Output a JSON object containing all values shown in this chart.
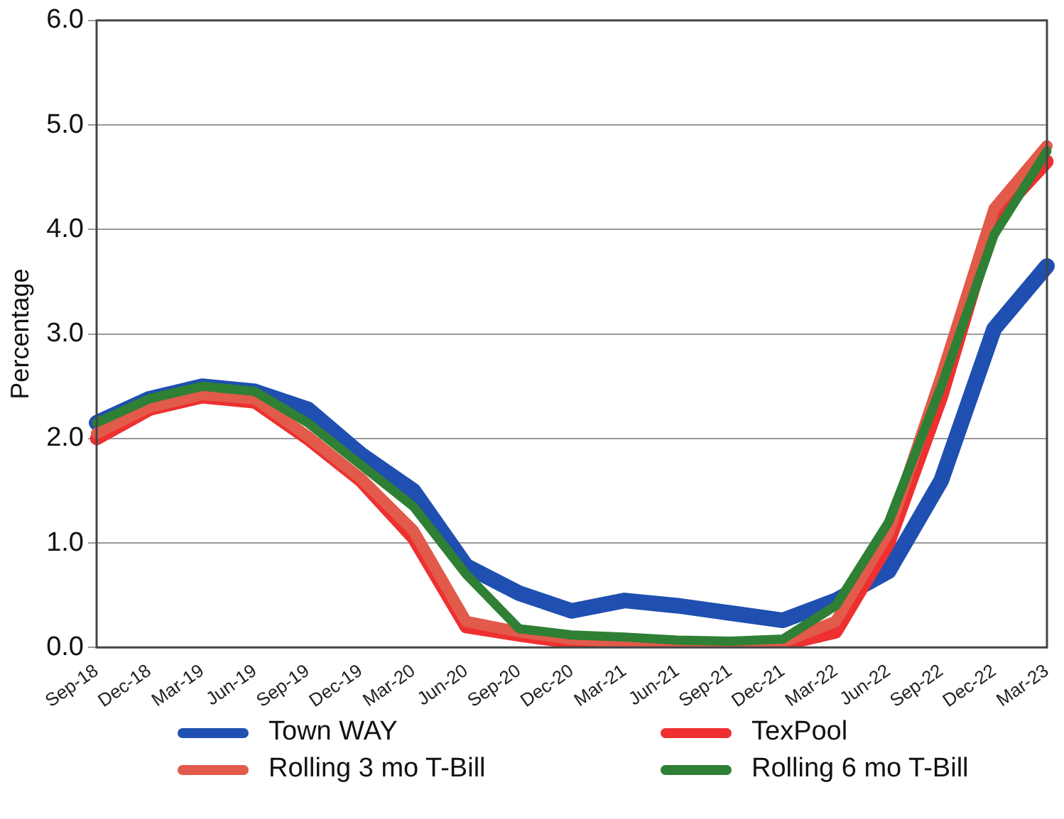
{
  "chart_data": {
    "type": "line",
    "ylabel": "Percentage",
    "categories": [
      "Sep-18",
      "Dec-18",
      "Mar-19",
      "Jun-19",
      "Sep-19",
      "Dec-19",
      "Mar-20",
      "Jun-20",
      "Sep-20",
      "Dec-20",
      "Mar-21",
      "Jun-21",
      "Sep-21",
      "Dec-21",
      "Mar-22",
      "Jun-22",
      "Sep-22",
      "Dec-22",
      "Mar-23"
    ],
    "series": [
      {
        "name": "Town WAY",
        "color": "#1f4fb0",
        "values": [
          2.15,
          2.38,
          2.5,
          2.45,
          2.28,
          1.85,
          1.5,
          0.78,
          0.52,
          0.35,
          0.45,
          0.4,
          0.33,
          0.26,
          0.45,
          0.73,
          1.6,
          3.05,
          3.65
        ]
      },
      {
        "name": "TexPool",
        "color": "#ee3030",
        "values": [
          2.0,
          2.28,
          2.4,
          2.35,
          2.0,
          1.6,
          1.05,
          0.2,
          0.12,
          0.05,
          0.02,
          0.02,
          0.02,
          0.03,
          0.15,
          1.0,
          2.4,
          4.1,
          4.65
        ]
      },
      {
        "name": "Rolling 3 mo T-Bill",
        "color": "#e25a4a",
        "values": [
          2.05,
          2.3,
          2.42,
          2.38,
          2.02,
          1.62,
          1.12,
          0.25,
          0.15,
          0.08,
          0.05,
          0.04,
          0.04,
          0.05,
          0.25,
          1.1,
          2.6,
          4.2,
          4.8
        ]
      },
      {
        "name": "Rolling 6 mo T-Bill",
        "color": "#2f7f35",
        "values": [
          2.15,
          2.38,
          2.5,
          2.45,
          2.15,
          1.75,
          1.35,
          0.7,
          0.18,
          0.12,
          0.1,
          0.07,
          0.06,
          0.08,
          0.4,
          1.2,
          2.5,
          3.95,
          4.75
        ]
      }
    ],
    "ylim": [
      0,
      6
    ],
    "yticks": [
      {
        "value": 0,
        "label": "0.0"
      },
      {
        "value": 1,
        "label": "1.0"
      },
      {
        "value": 2,
        "label": "2.0"
      },
      {
        "value": 3,
        "label": "3.0"
      },
      {
        "value": 4,
        "label": "4.0"
      },
      {
        "value": 5,
        "label": "5.0"
      },
      {
        "value": 6,
        "label": "6.0"
      }
    ],
    "grid": "y",
    "legend": "bottom",
    "marker": "none",
    "line_style": "solid"
  }
}
